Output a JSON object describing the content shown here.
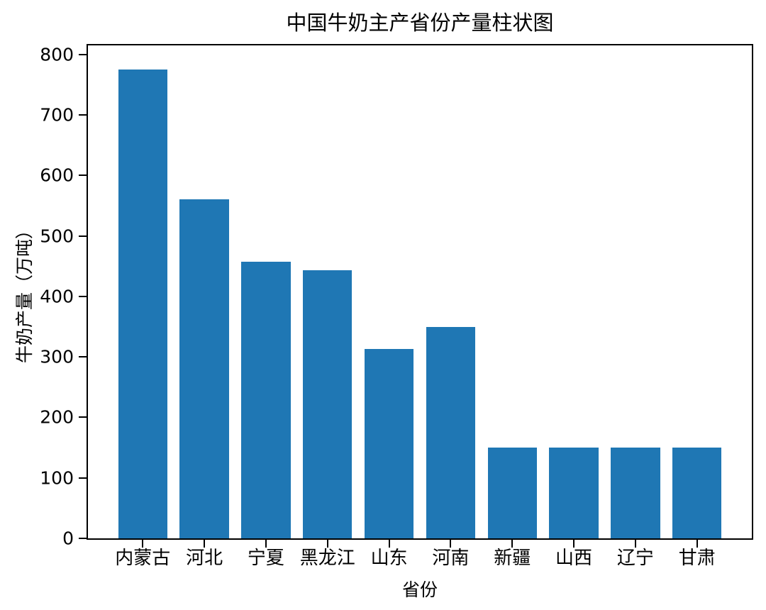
{
  "chart_data": {
    "type": "bar",
    "title": "中国牛奶主产省份产量柱状图",
    "xlabel": "省份",
    "ylabel": "牛奶产量（万吨）",
    "categories": [
      "内蒙古",
      "河北",
      "宁夏",
      "黑龙江",
      "山东",
      "河南",
      "新疆",
      "山西",
      "辽宁",
      "甘肃"
    ],
    "values": [
      775,
      560,
      457,
      443,
      313,
      350,
      150,
      150,
      150,
      150
    ],
    "ylim": [
      0,
      815
    ],
    "yticks": [
      0,
      100,
      200,
      300,
      400,
      500,
      600,
      700,
      800
    ],
    "bar_color": "#1f77b4",
    "axis_color": "#000000",
    "background_color": "#ffffff",
    "grid": false,
    "legend": null
  }
}
